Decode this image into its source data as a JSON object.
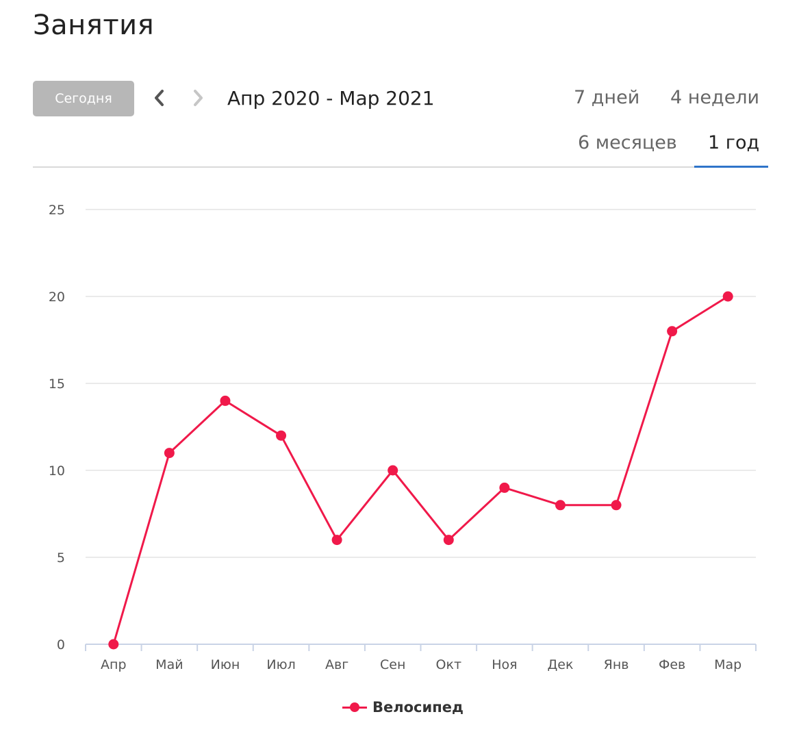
{
  "page": {
    "title": "Занятия"
  },
  "toolbar": {
    "today_label": "Сегодня",
    "date_range": "Апр 2020 - Мар 2021",
    "prev_icon": "chevron-left-icon",
    "next_icon": "chevron-right-icon"
  },
  "range_tabs": [
    {
      "label": "7 дней",
      "selected": false
    },
    {
      "label": "4 недели",
      "selected": false
    },
    {
      "label": "6 месяцев",
      "selected": false
    },
    {
      "label": "1 год",
      "selected": true
    }
  ],
  "colors": {
    "accent": "#2f74c9",
    "series": "#f0194a",
    "button": "#b7b7b7",
    "grid": "#e3e3e3"
  },
  "chart_data": {
    "type": "line",
    "categories": [
      "Апр",
      "Май",
      "Июн",
      "Июл",
      "Авг",
      "Сен",
      "Окт",
      "Ноя",
      "Дек",
      "Янв",
      "Фев",
      "Мар"
    ],
    "series": [
      {
        "name": "Велосипед",
        "values": [
          0,
          11,
          14,
          12,
          6,
          10,
          6,
          9,
          8,
          8,
          18,
          20
        ]
      }
    ],
    "yticks": [
      0,
      5,
      10,
      15,
      20,
      25
    ],
    "ylim": [
      0,
      25
    ],
    "grid": true,
    "legend": "bottom-center"
  }
}
